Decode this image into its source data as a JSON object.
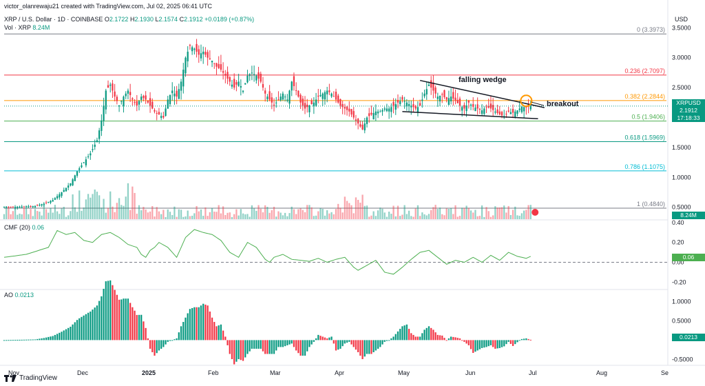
{
  "header": {
    "creator": "victor_olanrewaju21 created with TradingView.com, Jul 02, 2025 06:41 UTC",
    "symbol": "XRP / U.S. Dollar · 1D · COINBASE",
    "ohlc": {
      "o_label": "O",
      "o": "2.1722",
      "h_label": "H",
      "h": "2.1930",
      "l_label": "L",
      "l": "2.1574",
      "c_label": "C",
      "c": "2.1912",
      "chg": "+0.0189 (+0.87%)"
    },
    "vol_label": "Vol · XRP",
    "vol_value": "8.24M",
    "currency": "USD"
  },
  "price_tag": {
    "symbol": "XRPUSD",
    "price": "2.1912",
    "countdown": "17:18:33"
  },
  "vol_tag": "8.24M",
  "cmf": {
    "label": "CMF (20)",
    "value": "0.06",
    "tag": "0.06"
  },
  "ao": {
    "label": "AO",
    "value": "0.0213",
    "tag": "0.0213"
  },
  "annotations": {
    "wedge": "falling wedge",
    "breakout": "breakout"
  },
  "footer": {
    "brand": "TradingView"
  },
  "colors": {
    "up": "#089981",
    "down": "#f23645",
    "cmf": "#4caf50",
    "fib_red": "#f23645",
    "fib_orange": "#ff9800",
    "fib_green": "#4caf50",
    "fib_teal": "#089981",
    "fib_cyan": "#00bcd4",
    "fib_gray": "#787b86"
  },
  "chart_data": {
    "type": "candlestick",
    "x_labels": [
      "Nov",
      "Dec",
      "2025",
      "Feb",
      "Mar",
      "Apr",
      "May",
      "Jun",
      "Jul",
      "Aug",
      "Se"
    ],
    "y_ticks": [
      "3.5000",
      "3.0000",
      "2.5000",
      "2.0000",
      "1.5000",
      "1.0000",
      "0.5000"
    ],
    "fib_levels": [
      {
        "ratio": "0",
        "price": 3.3973,
        "label": "0 (3.3973)"
      },
      {
        "ratio": "0.236",
        "price": 2.7097,
        "label": "0.236 (2.7097)"
      },
      {
        "ratio": "0.382",
        "price": 2.2844,
        "label": "0.382 (2.2844)"
      },
      {
        "ratio": "0.5",
        "price": 1.9406,
        "label": "0.5 (1.9406)"
      },
      {
        "ratio": "0.618",
        "price": 1.5969,
        "label": "0.618 (1.5969)"
      },
      {
        "ratio": "0.786",
        "price": 1.1075,
        "label": "0.786 (1.1075)"
      },
      {
        "ratio": "1",
        "price": 0.484,
        "label": "1 (0.4840)"
      }
    ],
    "close_path": [
      [
        0,
        0.5
      ],
      [
        8,
        0.51
      ],
      [
        14,
        0.52
      ],
      [
        18,
        0.56
      ],
      [
        22,
        0.62
      ],
      [
        26,
        0.75
      ],
      [
        30,
        0.9
      ],
      [
        33,
        1.1
      ],
      [
        36,
        1.25
      ],
      [
        39,
        1.4
      ],
      [
        42,
        1.62
      ],
      [
        44,
        1.95
      ],
      [
        46,
        2.45
      ],
      [
        48,
        2.55
      ],
      [
        50,
        2.35
      ],
      [
        52,
        2.2
      ],
      [
        54,
        2.35
      ],
      [
        56,
        2.45
      ],
      [
        58,
        2.3
      ],
      [
        60,
        2.2
      ],
      [
        62,
        2.35
      ],
      [
        64,
        2.3
      ],
      [
        66,
        2.2
      ],
      [
        68,
        2.1
      ],
      [
        70,
        2.05
      ],
      [
        72,
        2.0
      ],
      [
        74,
        2.3
      ],
      [
        76,
        2.45
      ],
      [
        78,
        2.35
      ],
      [
        80,
        2.6
      ],
      [
        82,
        3.0
      ],
      [
        84,
        3.2
      ],
      [
        86,
        3.15
      ],
      [
        88,
        3.05
      ],
      [
        90,
        3.1
      ],
      [
        92,
        3.0
      ],
      [
        94,
        2.95
      ],
      [
        96,
        2.85
      ],
      [
        98,
        2.8
      ],
      [
        100,
        2.7
      ],
      [
        102,
        2.6
      ],
      [
        104,
        2.5
      ],
      [
        106,
        2.6
      ],
      [
        108,
        2.45
      ],
      [
        110,
        2.7
      ],
      [
        112,
        2.75
      ],
      [
        114,
        2.7
      ],
      [
        116,
        2.6
      ],
      [
        118,
        2.4
      ],
      [
        120,
        2.3
      ],
      [
        122,
        2.2
      ],
      [
        124,
        2.3
      ],
      [
        126,
        2.4
      ],
      [
        128,
        2.3
      ],
      [
        130,
        2.6
      ],
      [
        132,
        2.45
      ],
      [
        134,
        2.25
      ],
      [
        136,
        2.15
      ],
      [
        138,
        2.2
      ],
      [
        140,
        2.25
      ],
      [
        142,
        2.35
      ],
      [
        144,
        2.4
      ],
      [
        146,
        2.45
      ],
      [
        148,
        2.4
      ],
      [
        150,
        2.3
      ],
      [
        152,
        2.2
      ],
      [
        154,
        2.15
      ],
      [
        156,
        2.1
      ],
      [
        158,
        2.0
      ],
      [
        160,
        1.9
      ],
      [
        162,
        1.8
      ],
      [
        164,
        2.0
      ],
      [
        166,
        2.05
      ],
      [
        168,
        2.1
      ],
      [
        170,
        2.1
      ],
      [
        172,
        2.15
      ],
      [
        174,
        2.15
      ],
      [
        176,
        2.2
      ],
      [
        178,
        2.25
      ],
      [
        180,
        2.3
      ],
      [
        182,
        2.25
      ],
      [
        184,
        2.2
      ],
      [
        186,
        2.15
      ],
      [
        188,
        2.2
      ],
      [
        190,
        2.4
      ],
      [
        192,
        2.55
      ],
      [
        194,
        2.45
      ],
      [
        196,
        2.35
      ],
      [
        198,
        2.38
      ],
      [
        200,
        2.3
      ],
      [
        202,
        2.35
      ],
      [
        204,
        2.28
      ],
      [
        206,
        2.2
      ],
      [
        208,
        2.15
      ],
      [
        210,
        2.25
      ],
      [
        212,
        2.18
      ],
      [
        214,
        2.15
      ],
      [
        216,
        2.12
      ],
      [
        218,
        2.18
      ],
      [
        220,
        2.15
      ],
      [
        222,
        2.1
      ],
      [
        224,
        2.05
      ],
      [
        226,
        2.02
      ],
      [
        228,
        2.1
      ],
      [
        230,
        2.08
      ],
      [
        232,
        2.12
      ],
      [
        234,
        2.18
      ],
      [
        236,
        2.17
      ],
      [
        238,
        2.19
      ]
    ],
    "wedge_upper": [
      [
        188,
        2.62
      ],
      [
        238,
        2.12
      ]
    ],
    "wedge_lower": [
      [
        180,
        2.1
      ],
      [
        232,
        1.98
      ]
    ],
    "cmf_path": [
      [
        0,
        0.05
      ],
      [
        10,
        0.08
      ],
      [
        20,
        0.15
      ],
      [
        24,
        0.32
      ],
      [
        28,
        0.28
      ],
      [
        32,
        0.3
      ],
      [
        36,
        0.22
      ],
      [
        40,
        0.2
      ],
      [
        44,
        0.28
      ],
      [
        48,
        0.3
      ],
      [
        52,
        0.25
      ],
      [
        56,
        0.18
      ],
      [
        60,
        0.15
      ],
      [
        62,
        0.08
      ],
      [
        64,
        0.05
      ],
      [
        66,
        0.12
      ],
      [
        68,
        0.15
      ],
      [
        70,
        0.2
      ],
      [
        74,
        0.15
      ],
      [
        78,
        0.05
      ],
      [
        82,
        0.25
      ],
      [
        86,
        0.33
      ],
      [
        90,
        0.3
      ],
      [
        94,
        0.28
      ],
      [
        98,
        0.22
      ],
      [
        102,
        0.1
      ],
      [
        106,
        0.05
      ],
      [
        110,
        0.2
      ],
      [
        114,
        0.15
      ],
      [
        118,
        0.03
      ],
      [
        120,
        0.0
      ],
      [
        122,
        0.05
      ],
      [
        126,
        0.08
      ],
      [
        130,
        0.03
      ],
      [
        134,
        0.02
      ],
      [
        138,
        0.01
      ],
      [
        142,
        0.04
      ],
      [
        146,
        0.0
      ],
      [
        150,
        0.03
      ],
      [
        154,
        0.05
      ],
      [
        158,
        -0.05
      ],
      [
        160,
        -0.08
      ],
      [
        164,
        -0.03
      ],
      [
        168,
        0.02
      ],
      [
        172,
        -0.1
      ],
      [
        176,
        -0.12
      ],
      [
        180,
        -0.05
      ],
      [
        184,
        0.03
      ],
      [
        188,
        0.1
      ],
      [
        192,
        0.12
      ],
      [
        196,
        0.05
      ],
      [
        200,
        -0.02
      ],
      [
        204,
        0.02
      ],
      [
        208,
        0.0
      ],
      [
        212,
        0.05
      ],
      [
        216,
        0.0
      ],
      [
        220,
        0.07
      ],
      [
        224,
        0.02
      ],
      [
        228,
        0.1
      ],
      [
        232,
        0.06
      ],
      [
        236,
        0.04
      ],
      [
        238,
        0.06
      ]
    ],
    "cmf_ticks": [
      "0.40",
      "0.20",
      "0.00",
      "-0.20"
    ],
    "ao_ticks": [
      "1.0000",
      "0.5000",
      "0.0213",
      "-0.5000"
    ]
  }
}
